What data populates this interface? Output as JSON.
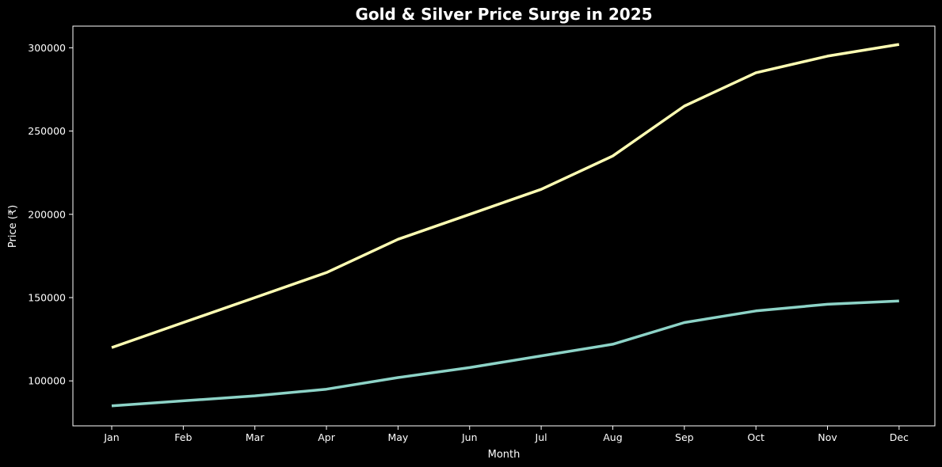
{
  "chart_data": {
    "type": "line",
    "title": "Gold & Silver Price Surge in 2025",
    "xlabel": "Month",
    "ylabel": "Price (₹)",
    "categories": [
      "Jan",
      "Feb",
      "Mar",
      "Apr",
      "May",
      "Jun",
      "Jul",
      "Aug",
      "Sep",
      "Oct",
      "Nov",
      "Dec"
    ],
    "yticks": [
      100000,
      150000,
      200000,
      250000,
      300000
    ],
    "ylim": [
      73000,
      313000
    ],
    "grid": false,
    "legend": "none",
    "series": [
      {
        "color": "#ffffb3",
        "values": [
          120000,
          135000,
          150000,
          165000,
          185000,
          200000,
          215000,
          235000,
          265000,
          285000,
          295000,
          302000
        ]
      },
      {
        "color": "#8dd3c7",
        "values": [
          85000,
          88000,
          91000,
          95000,
          102000,
          108000,
          115000,
          122000,
          135000,
          142000,
          146000,
          148000
        ]
      }
    ],
    "background": "#000000",
    "axis_color": "#ffffff"
  }
}
